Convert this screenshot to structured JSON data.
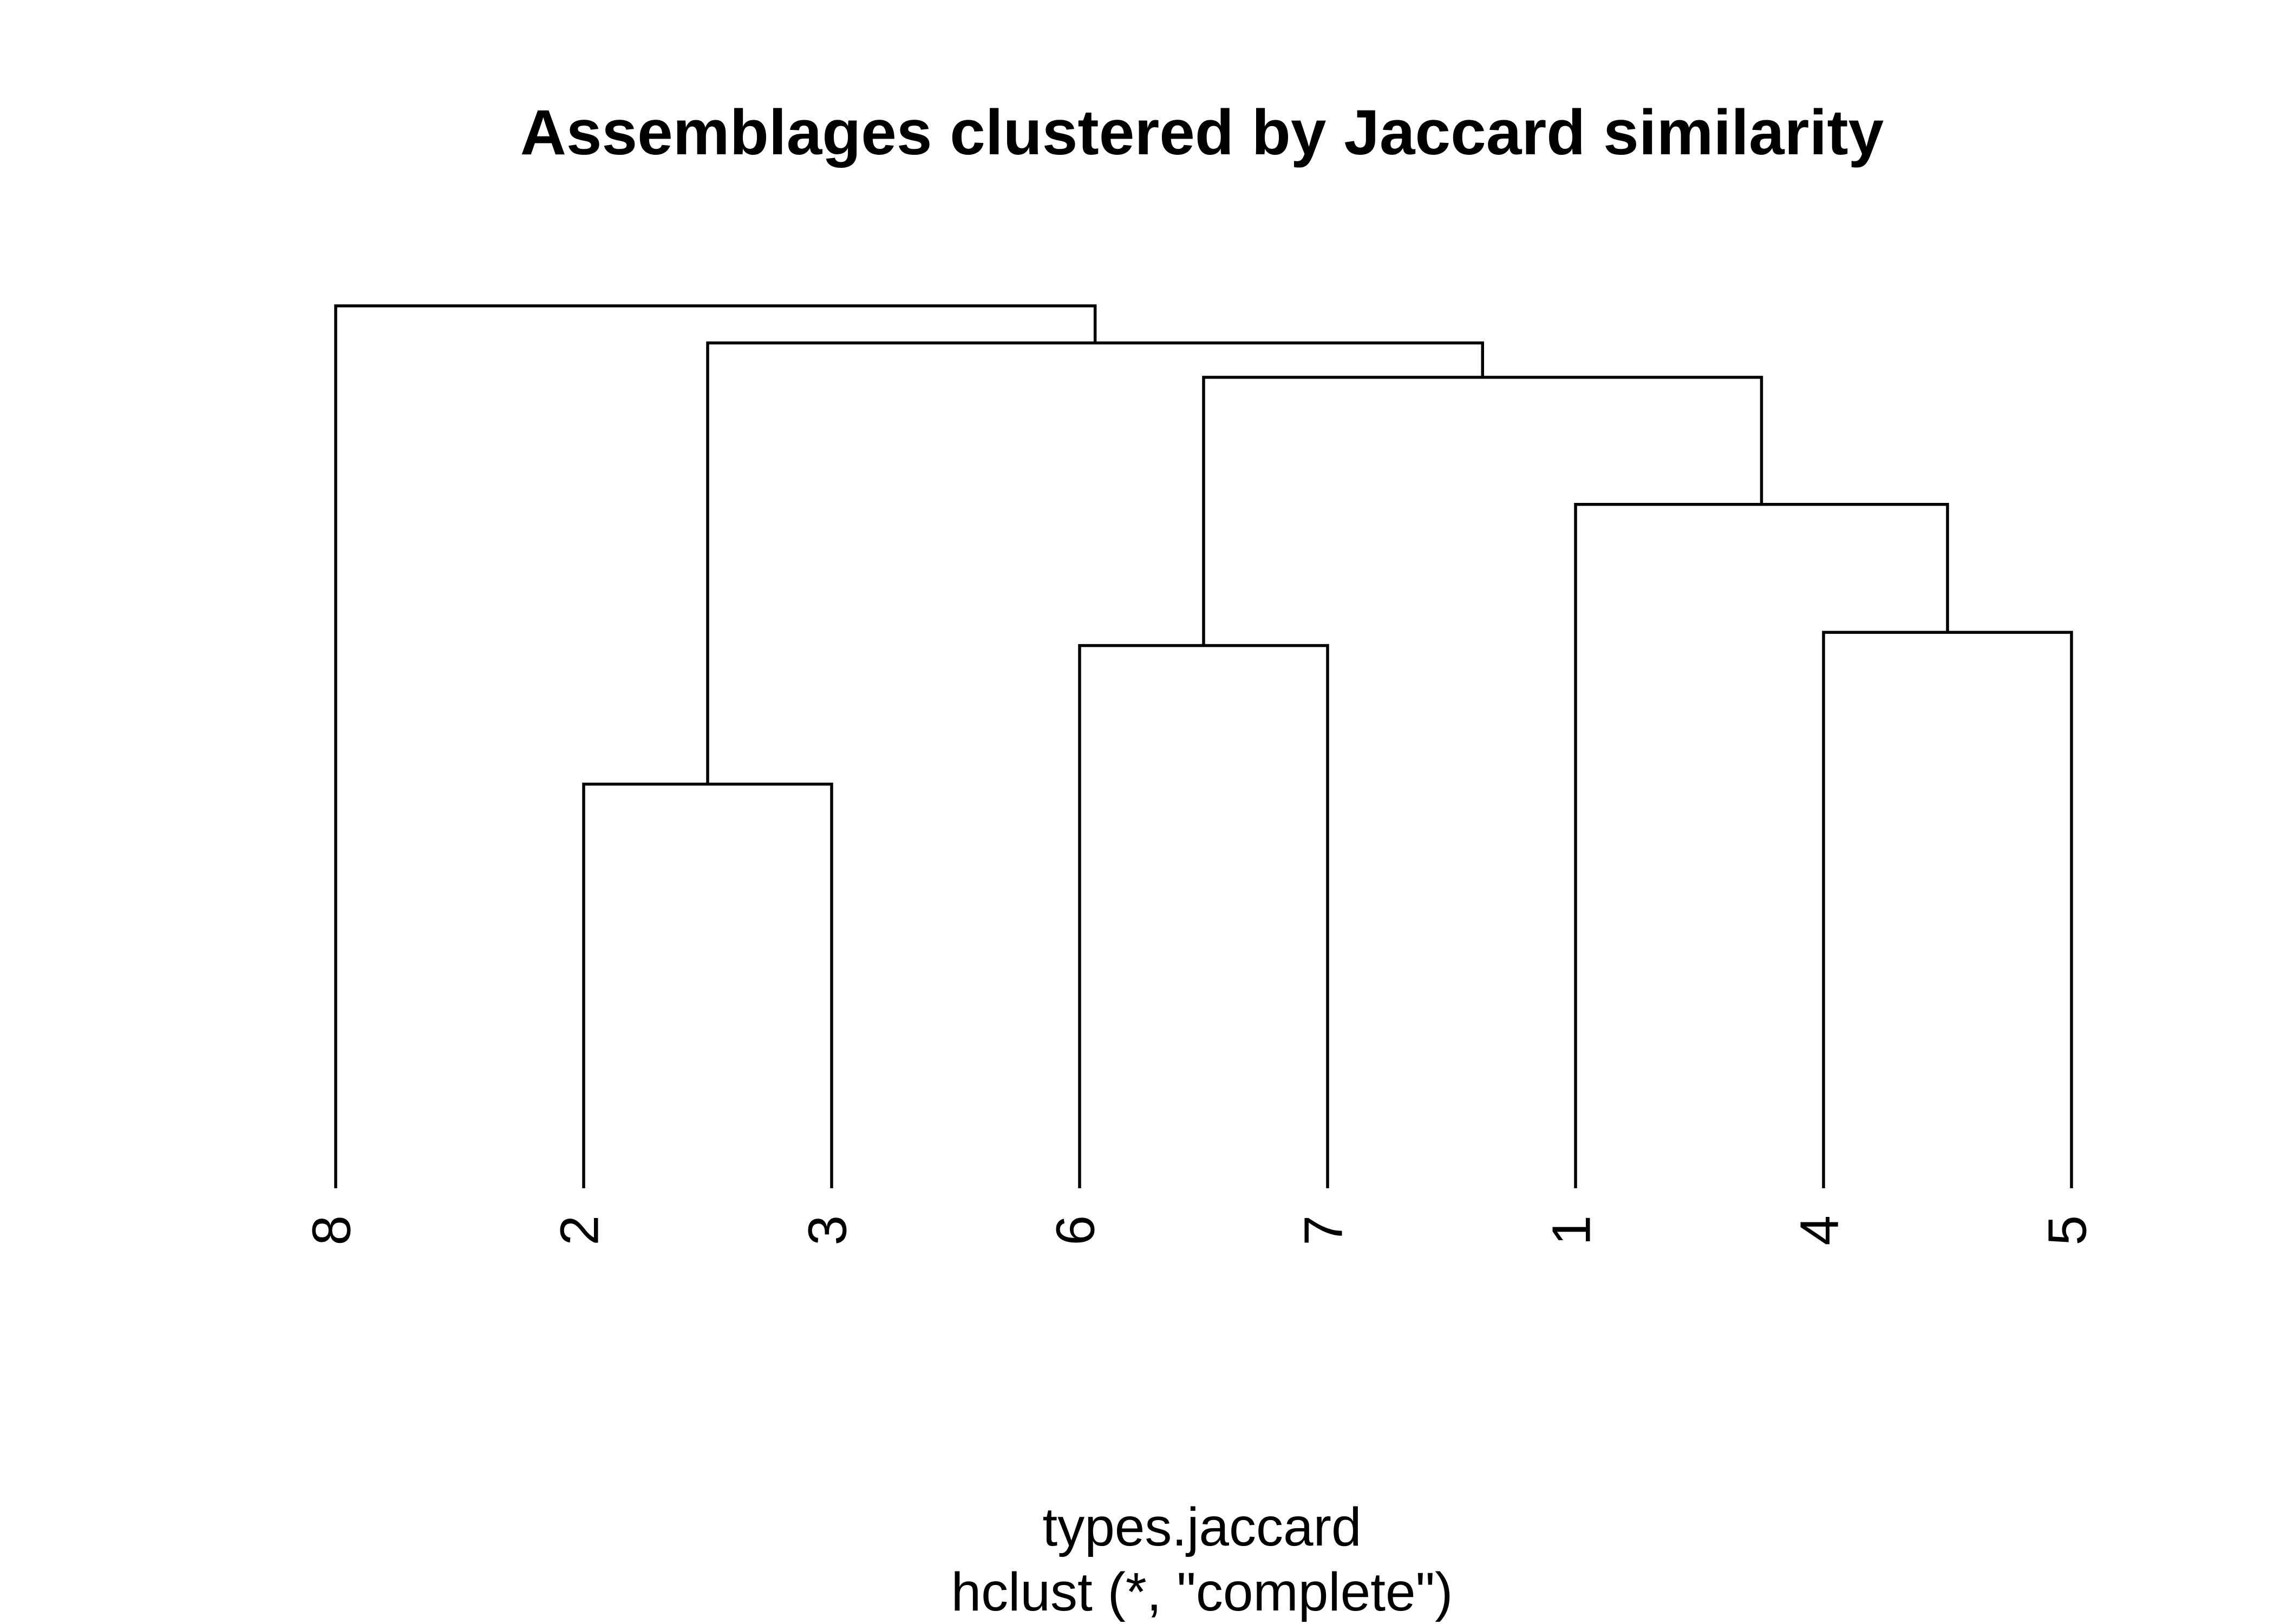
{
  "chart_data": {
    "type": "dendrogram",
    "title": "Assemblages clustered by Jaccard similarity",
    "xlabel": "types.jaccard",
    "sub": "hclust (*, \"complete\")",
    "ylabel": "",
    "ylim": [
      0,
      1
    ],
    "leaf_order": [
      "8",
      "2",
      "3",
      "6",
      "7",
      "1",
      "4",
      "5"
    ],
    "merges": [
      {
        "left": "4",
        "right": "5",
        "height": 0.63
      },
      {
        "left": "6",
        "right": "7",
        "height": 0.615
      },
      {
        "left": "2",
        "right": "3",
        "height": 0.458
      },
      {
        "left": "1",
        "right": "4+5",
        "height": 0.775
      },
      {
        "left": "6+7",
        "right": "1+4+5",
        "height": 0.919
      },
      {
        "left": "2+3",
        "right": "6+7+1+4+5",
        "height": 0.958
      },
      {
        "left": "8",
        "right": "2+3+6+7+1+4+5",
        "height": 1.0
      }
    ]
  }
}
